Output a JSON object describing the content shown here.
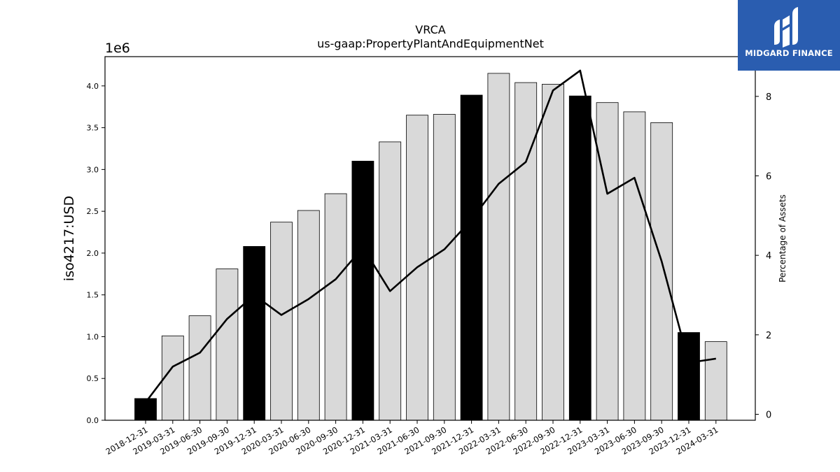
{
  "chart_data": {
    "type": "bar",
    "title": "VRCA",
    "subtitle": "us-gaap:PropertyPlantAndEquipmentNet",
    "ylabel": "iso4217:USD",
    "y2label": "Percentage of Assets",
    "y_multiplier_label": "1e6",
    "ylim": [
      0,
      4.35
    ],
    "y2lim": [
      -0.15,
      9.0
    ],
    "y_ticks": [
      "0.0",
      "0.5",
      "1.0",
      "1.5",
      "2.0",
      "2.5",
      "3.0",
      "3.5",
      "4.0"
    ],
    "y2_ticks": [
      "0",
      "2",
      "4",
      "6",
      "8"
    ],
    "categories": [
      "2018-12-31",
      "2019-03-31",
      "2019-06-30",
      "2019-09-30",
      "2019-12-31",
      "2020-03-31",
      "2020-06-30",
      "2020-09-30",
      "2020-12-31",
      "2021-03-31",
      "2021-06-30",
      "2021-09-30",
      "2021-12-31",
      "2022-03-31",
      "2022-06-30",
      "2022-09-30",
      "2022-12-31",
      "2023-03-31",
      "2023-06-30",
      "2023-09-30",
      "2023-12-31",
      "2024-03-31"
    ],
    "series": [
      {
        "type": "bar",
        "values": [
          0.26,
          1.01,
          1.25,
          1.81,
          2.08,
          2.37,
          2.51,
          2.71,
          3.1,
          3.33,
          3.65,
          3.66,
          3.89,
          4.15,
          4.04,
          4.02,
          3.88,
          3.8,
          3.69,
          3.56,
          1.05,
          0.94
        ],
        "highlight": [
          true,
          false,
          false,
          false,
          true,
          false,
          false,
          false,
          true,
          false,
          false,
          false,
          true,
          false,
          false,
          false,
          true,
          false,
          false,
          false,
          true,
          false
        ]
      },
      {
        "type": "line",
        "axis": "right",
        "values": [
          0.3,
          1.2,
          1.55,
          2.4,
          3.0,
          2.5,
          2.9,
          3.4,
          4.2,
          3.1,
          3.7,
          4.15,
          4.9,
          5.8,
          6.35,
          8.15,
          8.65,
          5.55,
          5.95,
          3.85,
          1.3,
          1.4
        ]
      }
    ],
    "colors": {
      "bar": "#d9d9d9",
      "bar_highlight": "#000000",
      "line": "#000000"
    },
    "grid": false
  },
  "logo": {
    "text": "MIDGARD FINANCE",
    "bg": "#2a5db0"
  }
}
